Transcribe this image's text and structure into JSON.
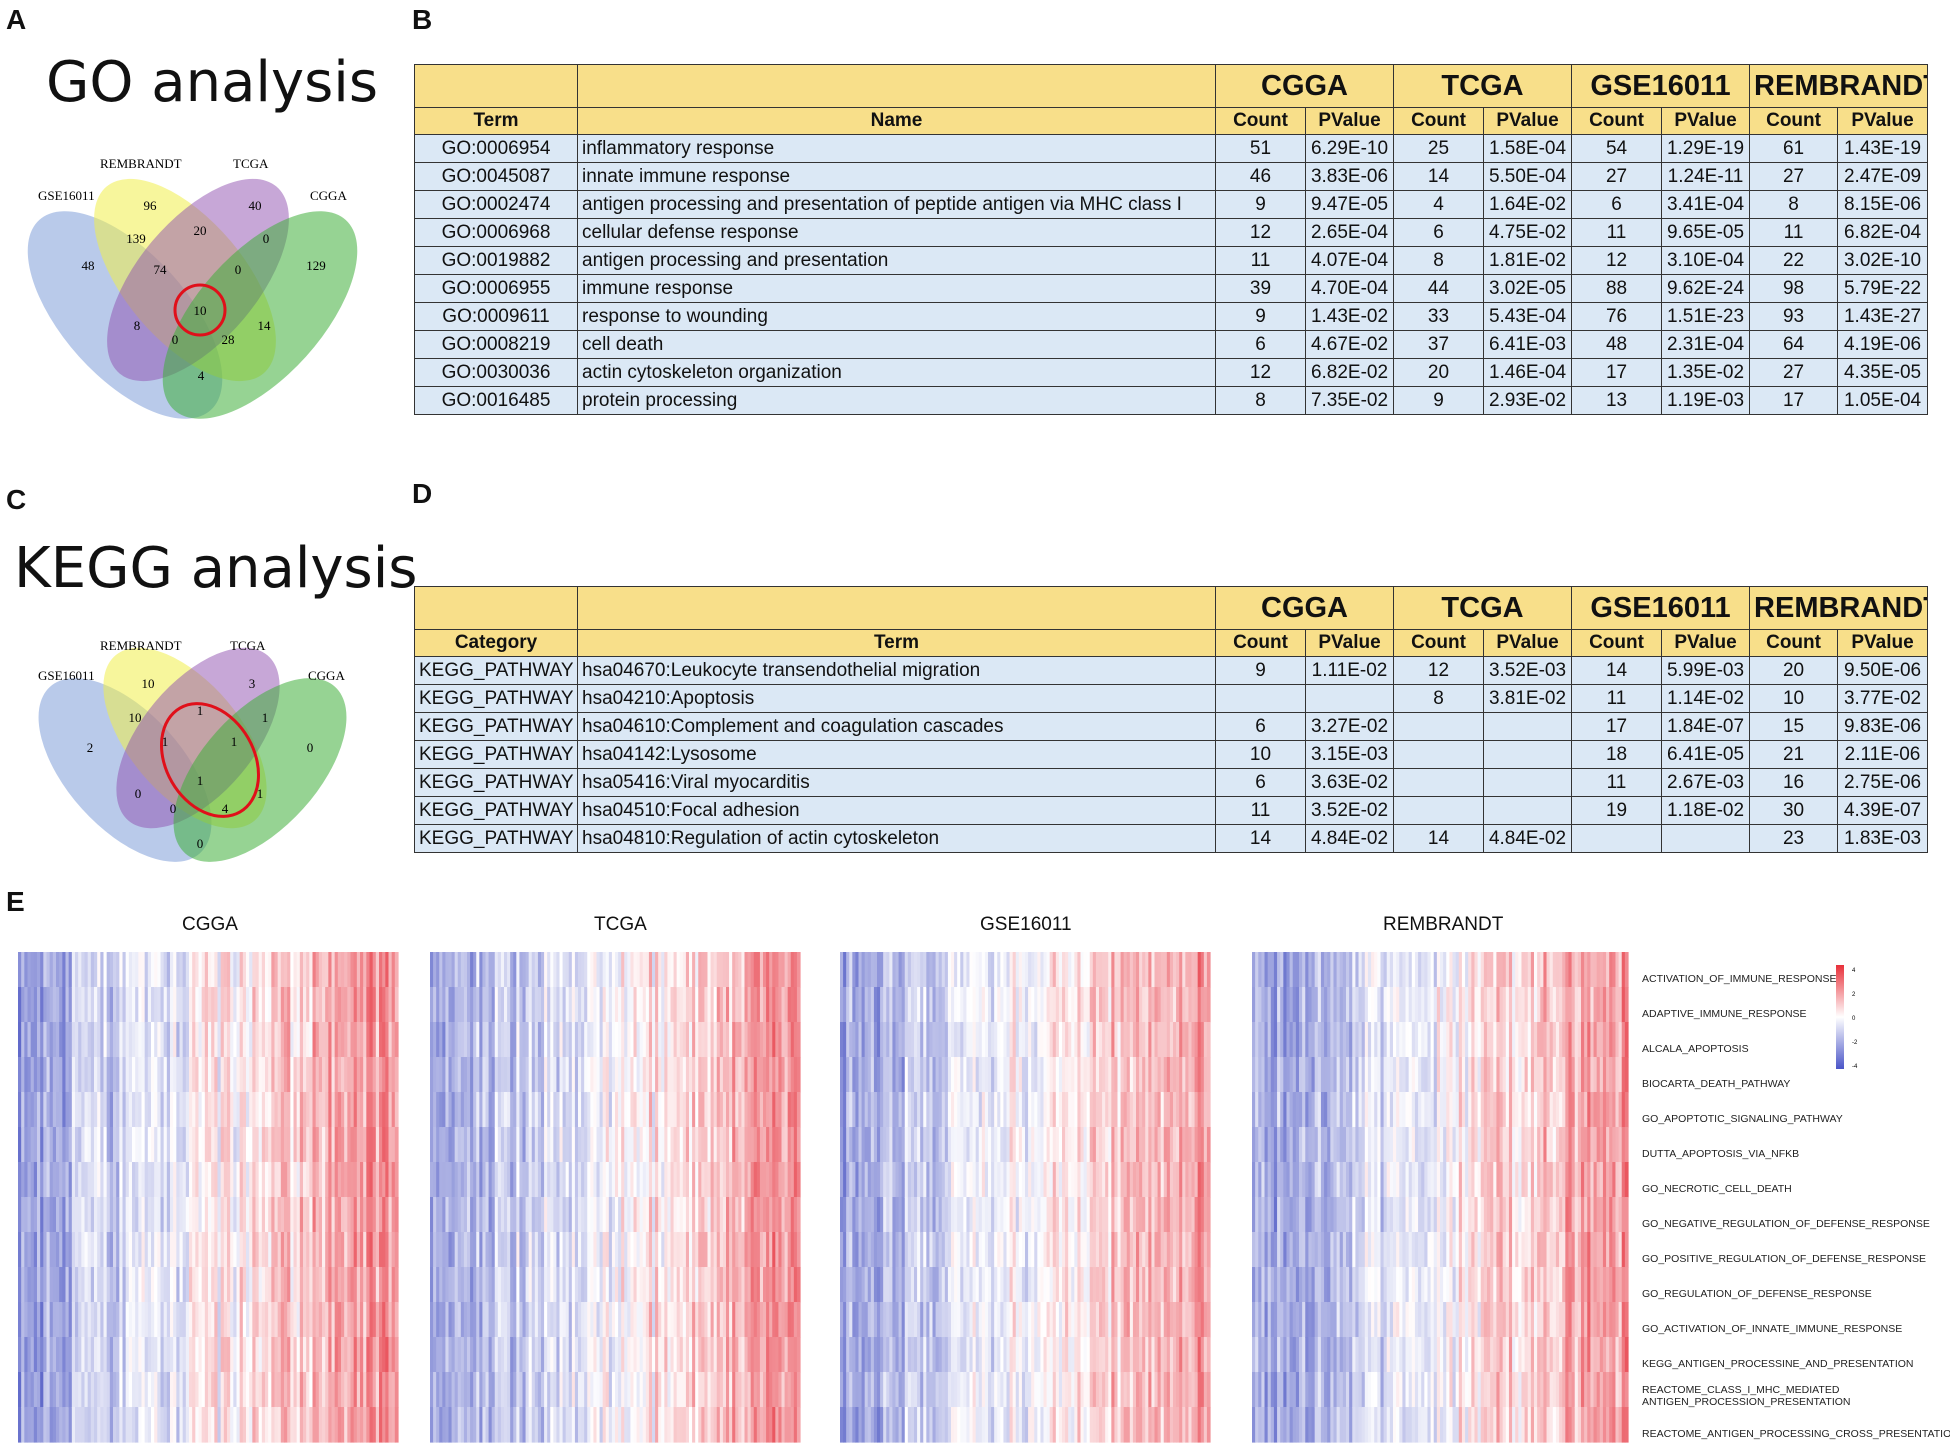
{
  "panel_labels": {
    "a": "A",
    "b": "B",
    "c": "C",
    "d": "D",
    "e": "E"
  },
  "go": {
    "title": "GO analysis",
    "venn": {
      "set_labels": {
        "gse": "GSE16011",
        "rem": "REMBRANDT",
        "tcga": "TCGA",
        "cgga": "CGGA"
      },
      "values": [
        "96",
        "40",
        "48",
        "139",
        "20",
        "0",
        "129",
        "74",
        "0",
        "10",
        "8",
        "14",
        "0",
        "28",
        "4"
      ]
    },
    "table": {
      "datasets": [
        "CGGA",
        "TCGA",
        "GSE16011",
        "REMBRANDT"
      ],
      "col1": "Term",
      "col2": "Name",
      "count": "Count",
      "pvalue": "PValue",
      "rows": [
        [
          "GO:0006954",
          "inflammatory response",
          "51",
          "6.29E-10",
          "25",
          "1.58E-04",
          "54",
          "1.29E-19",
          "61",
          "1.43E-19"
        ],
        [
          "GO:0045087",
          "innate immune response",
          "46",
          "3.83E-06",
          "14",
          "5.50E-04",
          "27",
          "1.24E-11",
          "27",
          "2.47E-09"
        ],
        [
          "GO:0002474",
          "antigen processing and presentation of peptide antigen via MHC class I",
          "9",
          "9.47E-05",
          "4",
          "1.64E-02",
          "6",
          "3.41E-04",
          "8",
          "8.15E-06"
        ],
        [
          "GO:0006968",
          "cellular defense response",
          "12",
          "2.65E-04",
          "6",
          "4.75E-02",
          "11",
          "9.65E-05",
          "11",
          "6.82E-04"
        ],
        [
          "GO:0019882",
          "antigen processing and presentation",
          "11",
          "4.07E-04",
          "8",
          "1.81E-02",
          "12",
          "3.10E-04",
          "22",
          "3.02E-10"
        ],
        [
          "GO:0006955",
          "immune response",
          "39",
          "4.70E-04",
          "44",
          "3.02E-05",
          "88",
          "9.62E-24",
          "98",
          "5.79E-22"
        ],
        [
          "GO:0009611",
          "response to wounding",
          "9",
          "1.43E-02",
          "33",
          "5.43E-04",
          "76",
          "1.51E-23",
          "93",
          "1.43E-27"
        ],
        [
          "GO:0008219",
          "cell death",
          "6",
          "4.67E-02",
          "37",
          "6.41E-03",
          "48",
          "2.31E-04",
          "64",
          "4.19E-06"
        ],
        [
          "GO:0030036",
          "actin cytoskeleton organization",
          "12",
          "6.82E-02",
          "20",
          "1.46E-04",
          "17",
          "1.35E-02",
          "27",
          "4.35E-05"
        ],
        [
          "GO:0016485",
          "protein processing",
          "8",
          "7.35E-02",
          "9",
          "2.93E-02",
          "13",
          "1.19E-03",
          "17",
          "1.05E-04"
        ]
      ]
    }
  },
  "kegg": {
    "title": "KEGG analysis",
    "venn": {
      "set_labels": {
        "gse": "GSE16011",
        "rem": "REMBRANDT",
        "tcga": "TCGA",
        "cgga": "CGGA"
      },
      "values": [
        "10",
        "3",
        "2",
        "10",
        "1",
        "1",
        "0",
        "1",
        "1",
        "1",
        "0",
        "1",
        "0",
        "4",
        "0"
      ]
    },
    "table": {
      "datasets": [
        "CGGA",
        "TCGA",
        "GSE16011",
        "REMBRANDT"
      ],
      "col1": "Category",
      "col2": "Term",
      "count": "Count",
      "pvalue": "PValue",
      "rows": [
        [
          "KEGG_PATHWAY",
          "hsa04670:Leukocyte transendothelial migration",
          "9",
          "1.11E-02",
          "12",
          "3.52E-03",
          "14",
          "5.99E-03",
          "20",
          "9.50E-06"
        ],
        [
          "KEGG_PATHWAY",
          "hsa04210:Apoptosis",
          "",
          "",
          "8",
          "3.81E-02",
          "11",
          "1.14E-02",
          "10",
          "3.77E-02"
        ],
        [
          "KEGG_PATHWAY",
          "hsa04610:Complement and coagulation cascades",
          "6",
          "3.27E-02",
          "",
          "",
          "17",
          "1.84E-07",
          "15",
          "9.83E-06"
        ],
        [
          "KEGG_PATHWAY",
          "hsa04142:Lysosome",
          "10",
          "3.15E-03",
          "",
          "",
          "18",
          "6.41E-05",
          "21",
          "2.11E-06"
        ],
        [
          "KEGG_PATHWAY",
          "hsa05416:Viral myocarditis",
          "6",
          "3.63E-02",
          "",
          "",
          "11",
          "2.67E-03",
          "16",
          "2.75E-06"
        ],
        [
          "KEGG_PATHWAY",
          "hsa04510:Focal adhesion",
          "11",
          "3.52E-02",
          "",
          "",
          "19",
          "1.18E-02",
          "30",
          "4.39E-07"
        ],
        [
          "KEGG_PATHWAY",
          "hsa04810:Regulation of actin cytoskeleton",
          "14",
          "4.84E-02",
          "14",
          "4.84E-02",
          "",
          "",
          "23",
          "1.83E-03"
        ]
      ]
    }
  },
  "heatmap": {
    "titles": [
      "CGGA",
      "TCGA",
      "GSE16011",
      "REMBRANDT"
    ],
    "row_labels": [
      "ACTIVATION_OF_IMMUNE_RESPONSE",
      "ADAPTIVE_IMMUNE_RESPONSE",
      "ALCALA_APOPTOSIS",
      "BIOCARTA_DEATH_PATHWAY",
      "GO_APOPTOTIC_SIGNALING_PATHWAY",
      "DUTTA_APOPTOSIS_VIA_NFKB",
      "GO_NECROTIC_CELL_DEATH",
      "GO_NEGATIVE_REGULATION_OF_DEFENSE_RESPONSE",
      "GO_POSITIVE_REGULATION_OF_DEFENSE_RESPONSE",
      "GO_REGULATION_OF_DEFENSE_RESPONSE",
      "GO_ACTIVATION_OF_INNATE_IMMUNE_RESPONSE",
      "KEGG_ANTIGEN_PROCESSINE_AND_PRESENTATION",
      "REACTOME_CLASS_I_MHC_MEDIATED ANTIGEN_PROCESSION_PRESENTATION",
      "REACTOME_ANTIGEN_PROCESSING_CROSS_PRESENTATION"
    ],
    "legend_ticks": [
      "4",
      "2",
      "0",
      "-2",
      "-4"
    ],
    "colors": {
      "low": "#4a55c8",
      "mid": "#ffffff",
      "high": "#e8303a"
    }
  }
}
